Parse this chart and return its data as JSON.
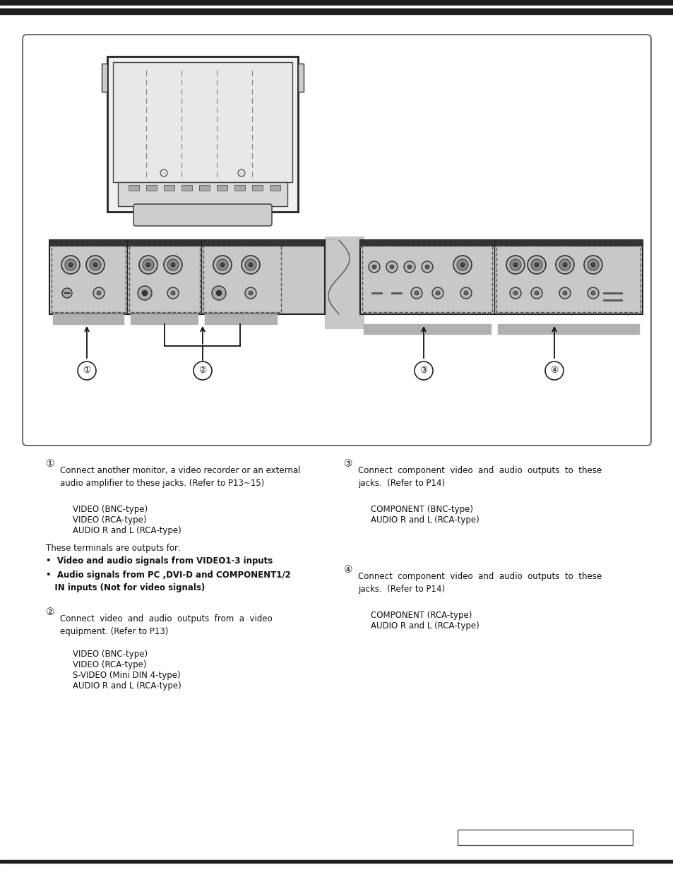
{
  "bg_color": "#ffffff",
  "section1_circle": "①",
  "section2_circle": "②",
  "section3_circle": "③",
  "section4_circle": "④",
  "sec1_title_text": "Connect another monitor, a video recorder or an external\naudio amplifier to these jacks. (Refer to P13~15)",
  "sec1_items": [
    "VIDEO (BNC-type)",
    "VIDEO (RCA-type)",
    "AUDIO R and L (RCA-type)"
  ],
  "sec1_note_title": "These terminals are outputs for:",
  "sec1_bullet1": "•  Video and audio signals from VIDEO1-3 inputs",
  "sec1_bullet2": "•  Audio signals from PC ,DVI-D and COMPONENT1/2\n   IN inputs (Not for video signals)",
  "sec2_title_text": "Connect  video  and  audio  outputs  from  a  video\nequipment. (Refer to P13)",
  "sec2_items": [
    "VIDEO (BNC-type)",
    "VIDEO (RCA-type)",
    "S-VIDEO (Mini DIN 4-type)",
    "AUDIO R and L (RCA-type)"
  ],
  "sec3_title_text": "Connect  component  video  and  audio  outputs  to  these\njacks.  (Refer to P14)",
  "sec3_items": [
    "COMPONENT (BNC-type)",
    "AUDIO R and L (RCA-type)"
  ],
  "sec4_title_text": "Connect  component  video  and  audio  outputs  to  these\njacks.  (Refer to P14)",
  "sec4_items": [
    "COMPONENT (RCA-type)",
    "AUDIO R and L (RCA-type)"
  ]
}
